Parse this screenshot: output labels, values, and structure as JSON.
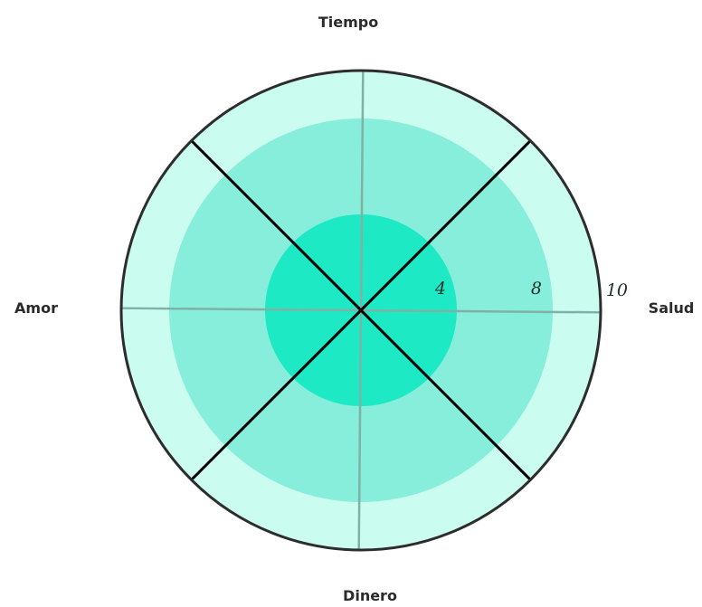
{
  "chart_data": {
    "type": "polar-area",
    "axes": [
      "Tiempo",
      "Salud",
      "Dinero",
      "Amor"
    ],
    "ring_values": [
      4,
      8,
      10
    ],
    "r_max": 10,
    "ring_colors": [
      "#1de9c5",
      "#86eedb",
      "#cafcef"
    ],
    "outline_color": "#2d2d2d",
    "primary_gridline_color": "#7fb1a6",
    "dividers_deg": [
      45,
      135
    ],
    "divider_color": "#000000"
  }
}
